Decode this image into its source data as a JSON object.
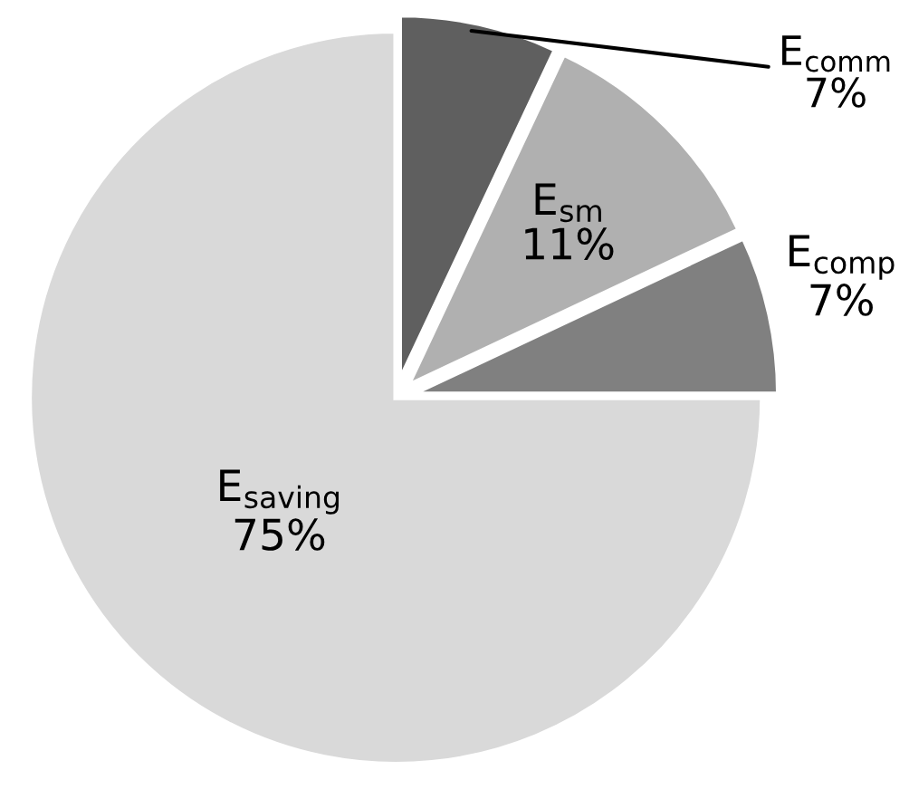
{
  "chart_data": {
    "type": "pie",
    "categories": [
      "E$_{comm}$",
      "E$_{sm}$",
      "E$_{comp}$",
      "E$_{saving}$"
    ],
    "values": [
      7,
      11,
      7,
      75
    ],
    "value_labels": [
      "7%",
      "11%",
      "7%",
      "75%"
    ],
    "colors": [
      "#5f5f5f",
      "#b0b0b0",
      "#808080",
      "#d9d9d9"
    ]
  }
}
